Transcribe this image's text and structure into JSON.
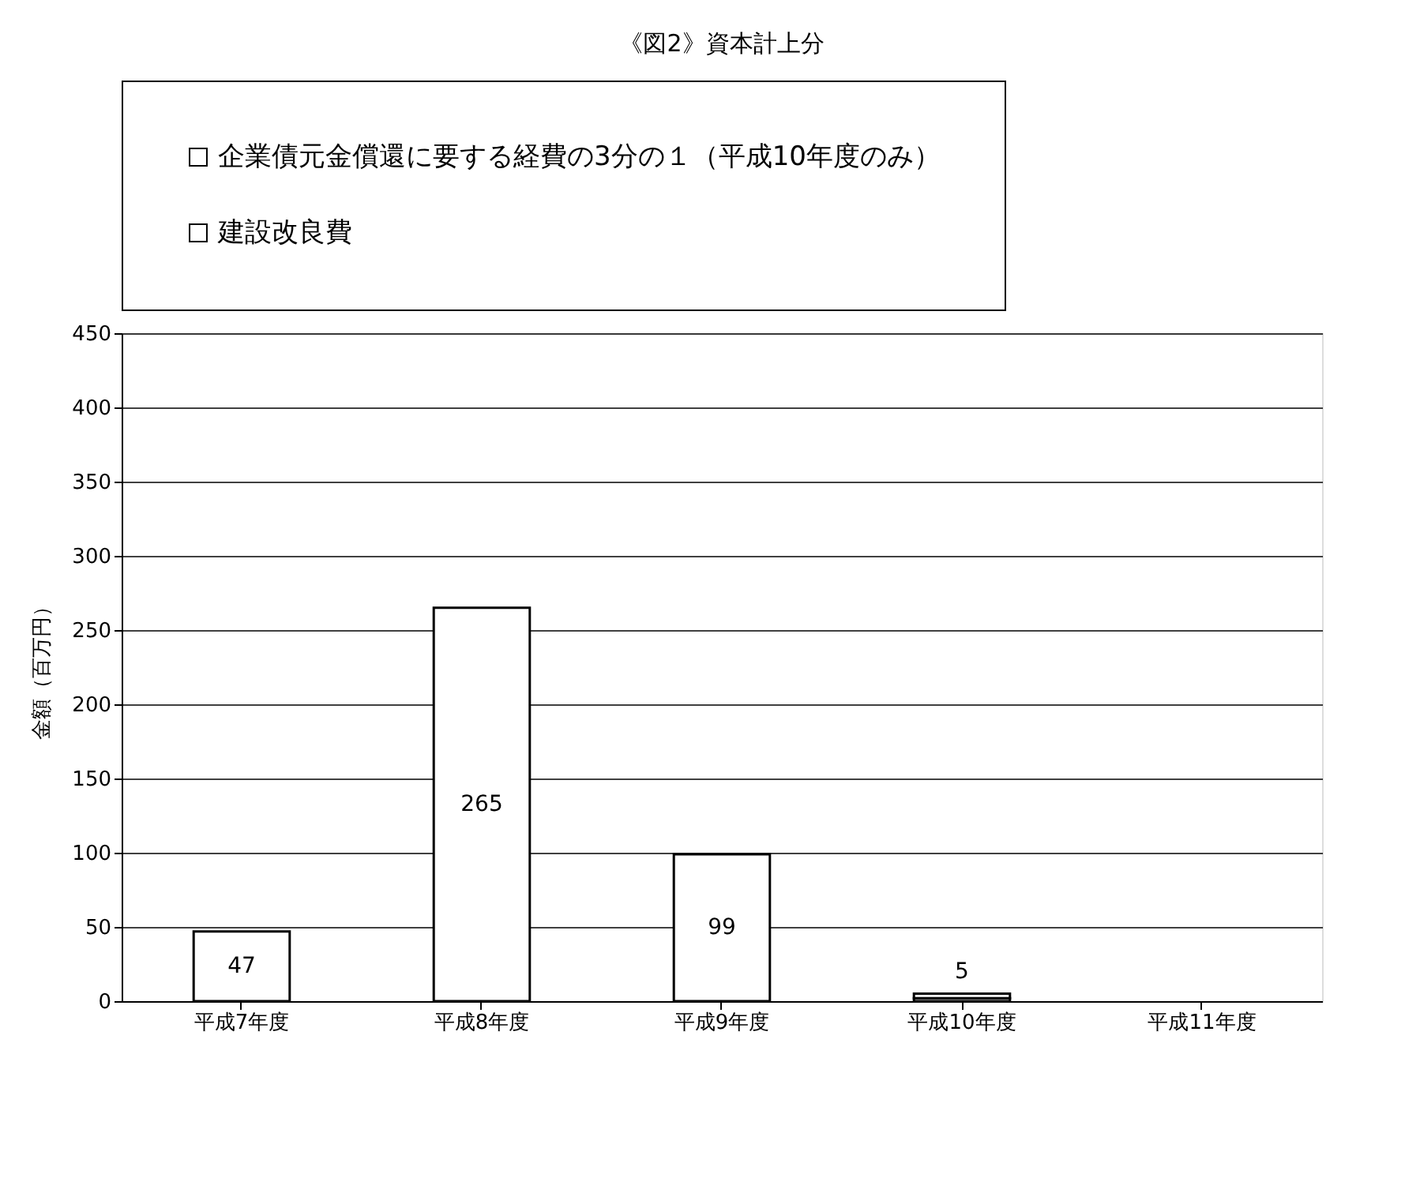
{
  "chart_data": {
    "type": "bar",
    "title": "《図2》資本計上分",
    "ylabel": "金額（百万円）",
    "categories": [
      "平成7年度",
      "平成8年度",
      "平成9年度",
      "平成10年度",
      "平成11年度"
    ],
    "stacked": true,
    "series": [
      {
        "name": "建設改良費",
        "color": "#ffffff",
        "values": [
          47,
          265,
          99,
          2,
          null
        ],
        "value_labels": [
          "47",
          "265",
          "99",
          null,
          null
        ]
      },
      {
        "name": "企業債元金償還に要する経費の3分の１（平成10年度のみ）",
        "color": "#ffffff",
        "values": [
          null,
          null,
          null,
          3,
          null
        ]
      }
    ],
    "totals": [
      null,
      null,
      null,
      "5",
      null
    ],
    "ylim": [
      0,
      450
    ],
    "yticks": [
      0,
      50,
      100,
      150,
      200,
      250,
      300,
      350,
      400,
      450
    ],
    "grid": "y",
    "legend": "top"
  }
}
